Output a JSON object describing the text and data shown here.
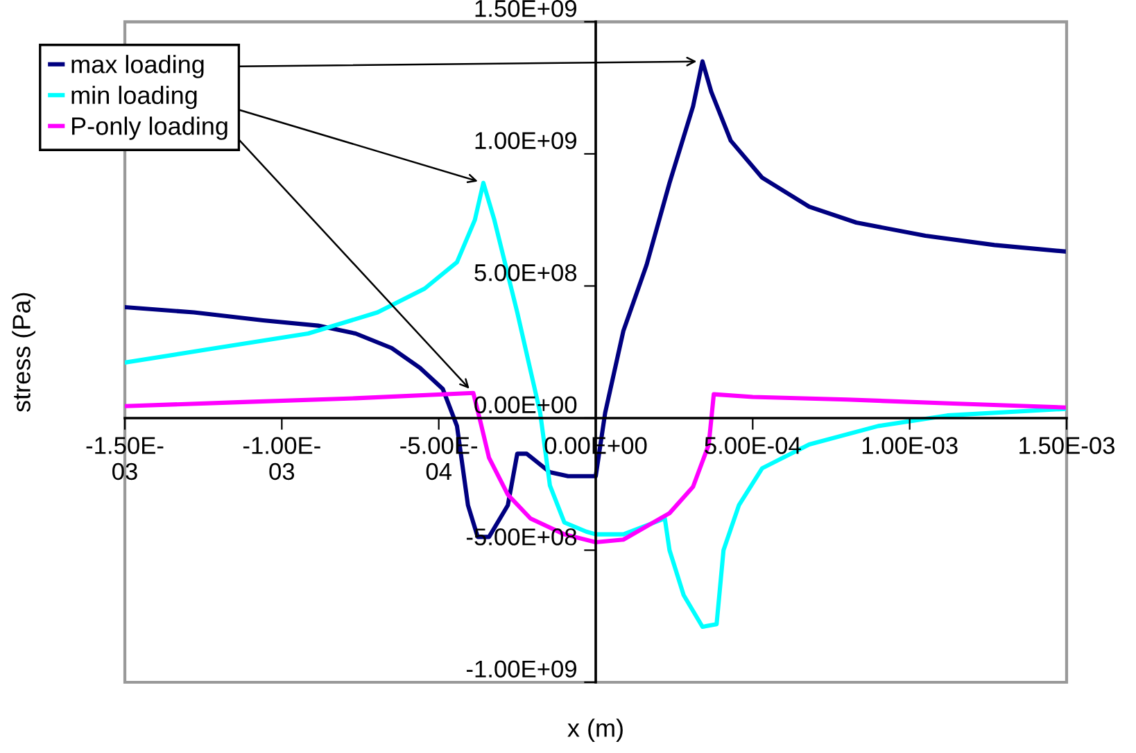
{
  "chart_data": {
    "type": "line",
    "xlabel": "x (m)",
    "ylabel": "stress (Pa)",
    "xlim": [
      -0.0015,
      0.0015
    ],
    "ylim": [
      -1000000000,
      1500000000
    ],
    "xticks": [
      {
        "value": -0.0015,
        "label": "-1.50E-\n03"
      },
      {
        "value": -0.001,
        "label": "-1.00E-\n03"
      },
      {
        "value": -0.0005,
        "label": "-5.00E-\n04"
      },
      {
        "value": 0,
        "label": "0.00E+00"
      },
      {
        "value": 0.0005,
        "label": "5.00E-04"
      },
      {
        "value": 0.001,
        "label": "1.00E-03"
      },
      {
        "value": 0.0015,
        "label": "1.50E-03"
      }
    ],
    "yticks": [
      {
        "value": -1000000000,
        "label": "-1.00E+09"
      },
      {
        "value": -500000000,
        "label": "-5.00E+08"
      },
      {
        "value": 0,
        "label": "0.00E+00"
      },
      {
        "value": 500000000,
        "label": "5.00E+08"
      },
      {
        "value": 1000000000,
        "label": "1.00E+09"
      },
      {
        "value": 1500000000,
        "label": "1.50E+09"
      }
    ],
    "grid": false,
    "legend": "top left",
    "marker": "none",
    "line_style": "solid",
    "series": [
      {
        "name": "max loading",
        "color": "#000080",
        "x": [
          -0.0015,
          -0.00128,
          -0.00106,
          -0.000885,
          -0.000765,
          -0.00065,
          -0.00056,
          -0.000487,
          -0.000442,
          -0.000407,
          -0.000376,
          -0.00034,
          -0.00028,
          -0.00025,
          -0.00022,
          -0.000146,
          -8.8e-05,
          -1.3e-05,
          0,
          3e-05,
          8.8e-05,
          0.000162,
          0.000235,
          0.00031,
          0.00034,
          0.000368,
          0.00043,
          0.00053,
          0.00068,
          0.00083,
          0.00105,
          0.00127,
          0.0015
        ],
        "values": [
          420000000,
          400000000,
          370000000,
          350000000,
          320000000,
          265000000,
          190000000,
          110000000,
          -30000000,
          -330000000,
          -450000000,
          -450000000,
          -330000000,
          -135000000,
          -135000000,
          -205000000,
          -220000000,
          -220000000,
          -220000000,
          20000000,
          330000000,
          580000000,
          890000000,
          1180000000,
          1350000000,
          1235000000,
          1050000000,
          910000000,
          800000000,
          740000000,
          690000000,
          655000000,
          630000000
        ]
      },
      {
        "name": "min loading",
        "color": "#00ffff",
        "x": [
          -0.0015,
          -0.00121,
          -0.000916,
          -0.000695,
          -0.000545,
          -0.000442,
          -0.000385,
          -0.000358,
          -0.000323,
          -0.00025,
          -0.000177,
          -0.000146,
          -0.0001,
          -3e-05,
          0,
          8.8e-05,
          0.00022,
          0.000235,
          0.00028,
          0.00034,
          0.000385,
          0.000407,
          0.000456,
          0.00053,
          0.00068,
          0.0009,
          0.00112,
          0.0015
        ],
        "values": [
          210000000,
          265000000,
          320000000,
          400000000,
          490000000,
          590000000,
          750000000,
          890000000,
          750000000,
          400000000,
          20000000,
          -255000000,
          -395000000,
          -430000000,
          -440000000,
          -440000000,
          -380000000,
          -500000000,
          -670000000,
          -790000000,
          -780000000,
          -500000000,
          -330000000,
          -190000000,
          -100000000,
          -30000000,
          10000000,
          35000000
        ]
      },
      {
        "name": "P-only loading",
        "color": "#ff00ff",
        "x": [
          -0.0015,
          -0.00114,
          -0.000765,
          -0.00039,
          -0.000367,
          -0.00034,
          -0.00028,
          -0.000208,
          -0.0001,
          0,
          8.8e-05,
          0.000235,
          0.00031,
          0.00036,
          0.000376,
          0.0005,
          0.0008,
          0.00114,
          0.0015
        ],
        "values": [
          45000000,
          60000000,
          75000000,
          95000000,
          -15000000,
          -150000000,
          -290000000,
          -380000000,
          -440000000,
          -470000000,
          -460000000,
          -360000000,
          -260000000,
          -100000000,
          90000000,
          80000000,
          70000000,
          55000000,
          40000000
        ]
      }
    ]
  }
}
